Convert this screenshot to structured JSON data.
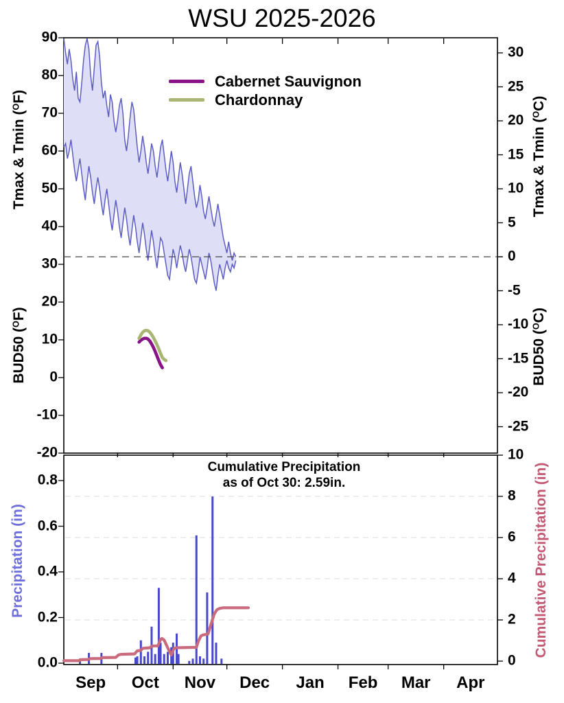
{
  "title": "WSU 2025-2026",
  "legend": {
    "items": [
      {
        "label": "Cabernet Sauvignon",
        "color": "#871387"
      },
      {
        "label": "Chardonnay",
        "color": "#a9b573"
      }
    ]
  },
  "annotation": {
    "line1": "Cumulative Precipitation",
    "line2": "as of Oct 30:  2.59in."
  },
  "axes": {
    "temp_f": {
      "title_pre": "Tmax & Tmin (",
      "title_sup": "O",
      "title_post": "F)",
      "ticks": [
        "90",
        "80",
        "70",
        "60",
        "50",
        "40",
        "30",
        "20",
        "10",
        "0",
        "-10",
        "-20"
      ]
    },
    "temp_c": {
      "title_pre": "Tmax & Tmin (",
      "title_sup": "O",
      "title_post": "C)",
      "ticks": [
        "30",
        "25",
        "20",
        "15",
        "10",
        "5",
        "0",
        "-5",
        "-10",
        "-15",
        "-20",
        "-25"
      ]
    },
    "bud50_f": {
      "title_pre": "BUD50 (",
      "title_sup": "O",
      "title_post": "F)"
    },
    "bud50_c": {
      "title_pre": "BUD50 (",
      "title_sup": "O",
      "title_post": "C)"
    },
    "precip": {
      "title": "Precipitation (in)",
      "color": "#6f6fdc",
      "ticks": [
        "0.0",
        "0.2",
        "0.4",
        "0.6",
        "0.8"
      ]
    },
    "cumulative": {
      "title": "Cumulative Precipitation (in)",
      "color": "#c25a74",
      "ticks": [
        "0",
        "2",
        "4",
        "6",
        "8",
        "10"
      ]
    }
  },
  "months": [
    "Sep",
    "Oct",
    "Nov",
    "Dec",
    "Jan",
    "Feb",
    "Mar",
    "Apr"
  ],
  "chart_data": [
    {
      "type": "area",
      "panel": "temperature-and-hardiness",
      "x_axis": {
        "start": "Sep 1",
        "end": "May 1",
        "unit": "days since Sep 1",
        "month_labels": [
          "Sep",
          "Oct",
          "Nov",
          "Dec",
          "Jan",
          "Feb",
          "Mar",
          "Apr"
        ]
      },
      "y_axis_left": {
        "labels": [
          "Tmax & Tmin (°F)",
          "BUD50 (°F)"
        ],
        "range_f": [
          -20,
          90
        ]
      },
      "y_axis_right": {
        "labels": [
          "Tmax & Tmin (°C)",
          "BUD50 (°C)"
        ],
        "ticks_c": [
          30,
          25,
          20,
          15,
          10,
          5,
          0,
          -5,
          -10,
          -15,
          -20,
          -25
        ]
      },
      "frost_line_f": 32,
      "band_fill": "#dedef7",
      "band_stroke": "#5c5cc4",
      "series": [
        {
          "name": "Tmax",
          "unit": "F",
          "start_day": 0,
          "values": [
            90,
            86,
            83,
            87,
            84,
            79,
            76,
            81,
            74,
            73,
            78,
            84,
            88,
            90,
            87,
            80,
            76,
            82,
            88,
            89,
            85,
            78,
            74,
            76,
            72,
            69,
            75,
            73,
            68,
            65,
            68,
            72,
            74,
            70,
            63,
            60,
            64,
            69,
            73,
            71,
            66,
            61,
            57,
            60,
            64,
            61,
            57,
            54,
            58,
            62,
            60,
            56,
            53,
            57,
            61,
            63,
            59,
            55,
            52,
            56,
            60,
            57,
            52,
            49,
            53,
            57,
            54,
            50,
            46,
            50,
            54,
            56,
            52,
            48,
            45,
            47,
            51,
            48,
            44,
            42,
            45,
            48,
            45,
            42,
            40,
            43,
            46,
            43,
            40,
            37,
            35,
            33,
            36,
            33,
            31,
            33,
            32
          ]
        },
        {
          "name": "Tmin",
          "unit": "F",
          "start_day": 0,
          "values": [
            61,
            62,
            58,
            60,
            63,
            59,
            55,
            52,
            55,
            58,
            54,
            50,
            47,
            52,
            56,
            53,
            49,
            46,
            50,
            53,
            50,
            46,
            43,
            47,
            50,
            46,
            42,
            39,
            43,
            47,
            44,
            40,
            37,
            41,
            45,
            42,
            38,
            35,
            39,
            43,
            40,
            36,
            33,
            37,
            41,
            38,
            34,
            31,
            35,
            39,
            36,
            32,
            29,
            33,
            37,
            36,
            33,
            30,
            27,
            26,
            30,
            34,
            32,
            29,
            32,
            35,
            33,
            30,
            28,
            31,
            34,
            32,
            29,
            26,
            25,
            28,
            32,
            30,
            28,
            26,
            29,
            33,
            31,
            28,
            25,
            23,
            27,
            30,
            28,
            26,
            29,
            31,
            29,
            28,
            30,
            29,
            31
          ]
        },
        {
          "name": "Cabernet Sauvignon BUD50",
          "unit": "F",
          "start_day": 42,
          "color": "#871387",
          "values": [
            9.4,
            9.9,
            10.2,
            10.4,
            10.4,
            10.2,
            9.7,
            8.9,
            8.0,
            6.9,
            5.7,
            4.5,
            3.4,
            2.6
          ]
        },
        {
          "name": "Chardonnay BUD50",
          "unit": "F",
          "start_day": 42,
          "color": "#a9b573",
          "values": [
            10.4,
            11.3,
            12.0,
            12.4,
            12.5,
            12.4,
            12.0,
            11.4,
            10.6,
            9.7,
            8.7,
            7.6,
            6.4,
            5.3,
            4.8,
            4.5
          ]
        }
      ]
    },
    {
      "type": "bar",
      "panel": "precipitation",
      "y_left": {
        "label": "Precipitation (in)",
        "range": [
          0,
          0.92
        ],
        "ticks": [
          0.0,
          0.2,
          0.4,
          0.6,
          0.8
        ]
      },
      "y_right": {
        "label": "Cumulative Precipitation (in)",
        "range": [
          0,
          10
        ],
        "ticks": [
          0,
          2,
          4,
          6,
          8,
          10
        ],
        "gridlines": [
          2,
          4,
          6,
          8
        ]
      },
      "bars": {
        "name": "Daily Precipitation",
        "unit": "in",
        "color": "#4848cb",
        "points": [
          [
            9,
            0.02
          ],
          [
            14,
            0.045
          ],
          [
            21,
            0.045
          ],
          [
            40,
            0.025
          ],
          [
            41,
            0.03
          ],
          [
            43,
            0.1
          ],
          [
            45,
            0.03
          ],
          [
            47,
            0.05
          ],
          [
            49,
            0.16
          ],
          [
            51,
            0.04
          ],
          [
            53,
            0.33
          ],
          [
            54,
            0.09
          ],
          [
            56,
            0.04
          ],
          [
            58,
            0.05
          ],
          [
            60,
            0.07
          ],
          [
            61,
            0.09
          ],
          [
            63,
            0.13
          ],
          [
            64,
            0.04
          ],
          [
            70,
            0.01
          ],
          [
            72,
            0.02
          ],
          [
            74,
            0.56
          ],
          [
            76,
            0.03
          ],
          [
            78,
            0.02
          ],
          [
            80,
            0.31
          ],
          [
            83,
            0.73
          ],
          [
            85,
            0.09
          ],
          [
            88,
            0.02
          ]
        ]
      },
      "cumulative": {
        "name": "Cumulative Precipitation",
        "unit": "in",
        "color": "#c96b7c",
        "total_as_of": "Oct 30",
        "total_in": 2.59,
        "points": [
          [
            0,
            0.02
          ],
          [
            8.5,
            0.02
          ],
          [
            9.5,
            0.07
          ],
          [
            13.5,
            0.08
          ],
          [
            14.5,
            0.12
          ],
          [
            20.5,
            0.13
          ],
          [
            21.5,
            0.17
          ],
          [
            29,
            0.18
          ],
          [
            30.5,
            0.3
          ],
          [
            32,
            0.33
          ],
          [
            39.5,
            0.35
          ],
          [
            41,
            0.5
          ],
          [
            43,
            0.52
          ],
          [
            44,
            0.62
          ],
          [
            45,
            0.63
          ],
          [
            48,
            0.65
          ],
          [
            49,
            0.72
          ],
          [
            50,
            0.74
          ],
          [
            52.5,
            0.74
          ],
          [
            54,
            1.05
          ],
          [
            54.8,
            1.1
          ],
          [
            56,
            1.02
          ],
          [
            58.5,
            0.55
          ],
          [
            60,
            0.3
          ],
          [
            61.5,
            0.62
          ],
          [
            63,
            0.65
          ],
          [
            74,
            0.67
          ],
          [
            75,
            0.95
          ],
          [
            76.5,
            1.22
          ],
          [
            77.5,
            1.27
          ],
          [
            80.5,
            1.32
          ],
          [
            82,
            1.75
          ],
          [
            84,
            2.3
          ],
          [
            85.5,
            2.5
          ],
          [
            87,
            2.56
          ],
          [
            89,
            2.59
          ],
          [
            103,
            2.59
          ]
        ]
      }
    }
  ]
}
